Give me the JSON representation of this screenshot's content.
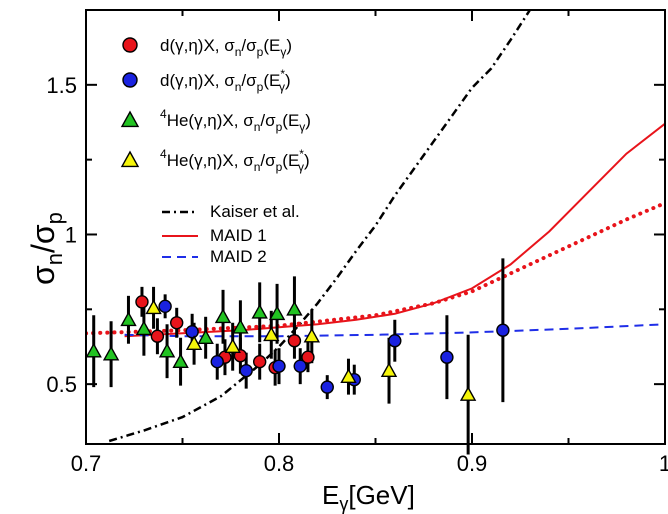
{
  "chart_data": {
    "type": "scatter",
    "xlabel": {
      "main": "E",
      "sub": "γ",
      "unit": "[GeV]"
    },
    "ylabel": {
      "num": "σ",
      "num_sub": "n",
      "slash": "/",
      "den": "σ",
      "den_sub": "p"
    },
    "xlim": [
      0.7,
      1.0
    ],
    "ylim": [
      0.3,
      1.75
    ],
    "x_ticks": [
      0.7,
      0.8,
      0.9,
      1.0
    ],
    "x_tick_labels": [
      "0.7",
      "0.8",
      "0.9",
      "1"
    ],
    "y_ticks": [
      0.5,
      1.0,
      1.5
    ],
    "y_tick_labels": [
      "0.5",
      "1",
      "1.5"
    ],
    "grid": false,
    "legend_position": "top-left",
    "colors": {
      "red": "#e8141b",
      "blue": "#1a22e0",
      "green": "#22c322",
      "yellow": "#f5f50a",
      "black": "#000000",
      "maid2": "#1f2ee8"
    },
    "series": [
      {
        "name": "d(γ,η)X, σn/σp(Eγ)",
        "legend": {
          "pre": "d(γ,η)X, σ",
          "s1": "n",
          "mid": "/σ",
          "s2": "p",
          "mid2": "(E",
          "s3": "γ",
          "post": ")"
        },
        "marker": "circle",
        "color": "red",
        "points": [
          {
            "x": 0.729,
            "y": 0.775,
            "err": 0.05
          },
          {
            "x": 0.737,
            "y": 0.66,
            "err": 0.06
          },
          {
            "x": 0.747,
            "y": 0.705,
            "err": 0.05
          },
          {
            "x": 0.772,
            "y": 0.59,
            "err": 0.06
          },
          {
            "x": 0.78,
            "y": 0.595,
            "err": 0.06
          },
          {
            "x": 0.79,
            "y": 0.575,
            "err": 0.06
          },
          {
            "x": 0.798,
            "y": 0.555,
            "err": 0.06
          },
          {
            "x": 0.808,
            "y": 0.645,
            "err": 0.06
          },
          {
            "x": 0.815,
            "y": 0.59,
            "err": 0.05
          }
        ]
      },
      {
        "name": "d(γ,η)X, σn/σp(E*γ)",
        "legend": {
          "pre": "d(γ,η)X, σ",
          "s1": "n",
          "mid": "/σ",
          "s2": "p",
          "mid2": "(E",
          "sup": "*",
          "s3": "γ",
          "post": ")"
        },
        "marker": "circle",
        "color": "blue",
        "points": [
          {
            "x": 0.741,
            "y": 0.76,
            "err": 0.04
          },
          {
            "x": 0.755,
            "y": 0.675,
            "err": 0.06
          },
          {
            "x": 0.768,
            "y": 0.575,
            "err": 0.06
          },
          {
            "x": 0.783,
            "y": 0.545,
            "err": 0.06
          },
          {
            "x": 0.8,
            "y": 0.56,
            "err": 0.06
          },
          {
            "x": 0.811,
            "y": 0.56,
            "err": 0.06
          },
          {
            "x": 0.825,
            "y": 0.49,
            "err": 0.04
          },
          {
            "x": 0.839,
            "y": 0.515,
            "err": 0.05
          },
          {
            "x": 0.86,
            "y": 0.645,
            "err": 0.07
          },
          {
            "x": 0.887,
            "y": 0.59,
            "err": 0.14
          },
          {
            "x": 0.916,
            "y": 0.68,
            "err": 0.24
          }
        ]
      },
      {
        "name": "4He(γ,η)X, σn/σp(Eγ)",
        "legend": {
          "presup": "4",
          "pre": "He(γ,η)X, σ",
          "s1": "n",
          "mid": "/σ",
          "s2": "p",
          "mid2": "(E",
          "s3": "γ",
          "post": ")"
        },
        "marker": "triangle",
        "color": "green",
        "points": [
          {
            "x": 0.704,
            "y": 0.61,
            "err": 0.12
          },
          {
            "x": 0.713,
            "y": 0.6,
            "err": 0.11
          },
          {
            "x": 0.722,
            "y": 0.715,
            "err": 0.08
          },
          {
            "x": 0.73,
            "y": 0.685,
            "err": 0.09
          },
          {
            "x": 0.742,
            "y": 0.61,
            "err": 0.09
          },
          {
            "x": 0.749,
            "y": 0.575,
            "err": 0.08
          },
          {
            "x": 0.762,
            "y": 0.655,
            "err": 0.07
          },
          {
            "x": 0.771,
            "y": 0.725,
            "err": 0.09
          },
          {
            "x": 0.78,
            "y": 0.69,
            "err": 0.09
          },
          {
            "x": 0.79,
            "y": 0.74,
            "err": 0.1
          },
          {
            "x": 0.799,
            "y": 0.735,
            "err": 0.1
          },
          {
            "x": 0.808,
            "y": 0.75,
            "err": 0.11
          }
        ]
      },
      {
        "name": "4He(γ,η)X, σn/σp(E*γ)",
        "legend": {
          "presup": "4",
          "pre": "He(γ,η)X, σ",
          "s1": "n",
          "mid": "/σ",
          "s2": "p",
          "mid2": "(E",
          "sup": "*",
          "s3": "γ",
          "post": ")"
        },
        "marker": "triangle",
        "color": "yellow",
        "points": [
          {
            "x": 0.735,
            "y": 0.755,
            "err": 0.07
          },
          {
            "x": 0.756,
            "y": 0.635,
            "err": 0.07
          },
          {
            "x": 0.776,
            "y": 0.625,
            "err": 0.08
          },
          {
            "x": 0.796,
            "y": 0.665,
            "err": 0.08
          },
          {
            "x": 0.817,
            "y": 0.66,
            "err": 0.09
          },
          {
            "x": 0.836,
            "y": 0.525,
            "err": 0.06
          },
          {
            "x": 0.857,
            "y": 0.545,
            "err": 0.11
          },
          {
            "x": 0.898,
            "y": 0.465,
            "err": 0.2
          }
        ]
      }
    ],
    "curves": [
      {
        "name": "Kaiser et al.",
        "style": "dashdot",
        "color": "black",
        "x": [
          0.712,
          0.73,
          0.75,
          0.77,
          0.79,
          0.8,
          0.81,
          0.82,
          0.83,
          0.84,
          0.85,
          0.86,
          0.87,
          0.88,
          0.89,
          0.9,
          0.91,
          0.92,
          0.93
        ],
        "y": [
          0.31,
          0.345,
          0.39,
          0.46,
          0.565,
          0.625,
          0.695,
          0.77,
          0.855,
          0.945,
          1.03,
          1.13,
          1.22,
          1.31,
          1.4,
          1.49,
          1.555,
          1.65,
          1.75
        ]
      },
      {
        "name": "MAID 1",
        "style": "solid",
        "color": "red",
        "x": [
          0.72,
          0.75,
          0.78,
          0.8,
          0.82,
          0.84,
          0.86,
          0.88,
          0.9,
          0.92,
          0.94,
          0.96,
          0.98,
          1.0
        ],
        "y": [
          0.66,
          0.67,
          0.68,
          0.69,
          0.7,
          0.715,
          0.735,
          0.77,
          0.82,
          0.9,
          1.01,
          1.14,
          1.27,
          1.37
        ]
      },
      {
        "name": "MAID 1 (dotted)",
        "style": "dotted",
        "color": "red",
        "x": [
          0.7,
          0.75,
          0.8,
          0.85,
          0.88,
          0.9,
          0.92,
          0.94,
          0.96,
          0.98,
          1.0
        ],
        "y": [
          0.67,
          0.68,
          0.695,
          0.73,
          0.77,
          0.81,
          0.87,
          0.93,
          0.99,
          1.05,
          1.105
        ]
      },
      {
        "name": "MAID 2",
        "style": "dashed",
        "color": "maid2",
        "x": [
          0.72,
          0.75,
          0.8,
          0.85,
          0.9,
          0.95,
          1.0
        ],
        "y": [
          0.665,
          0.66,
          0.66,
          0.665,
          0.673,
          0.685,
          0.7
        ]
      }
    ]
  }
}
